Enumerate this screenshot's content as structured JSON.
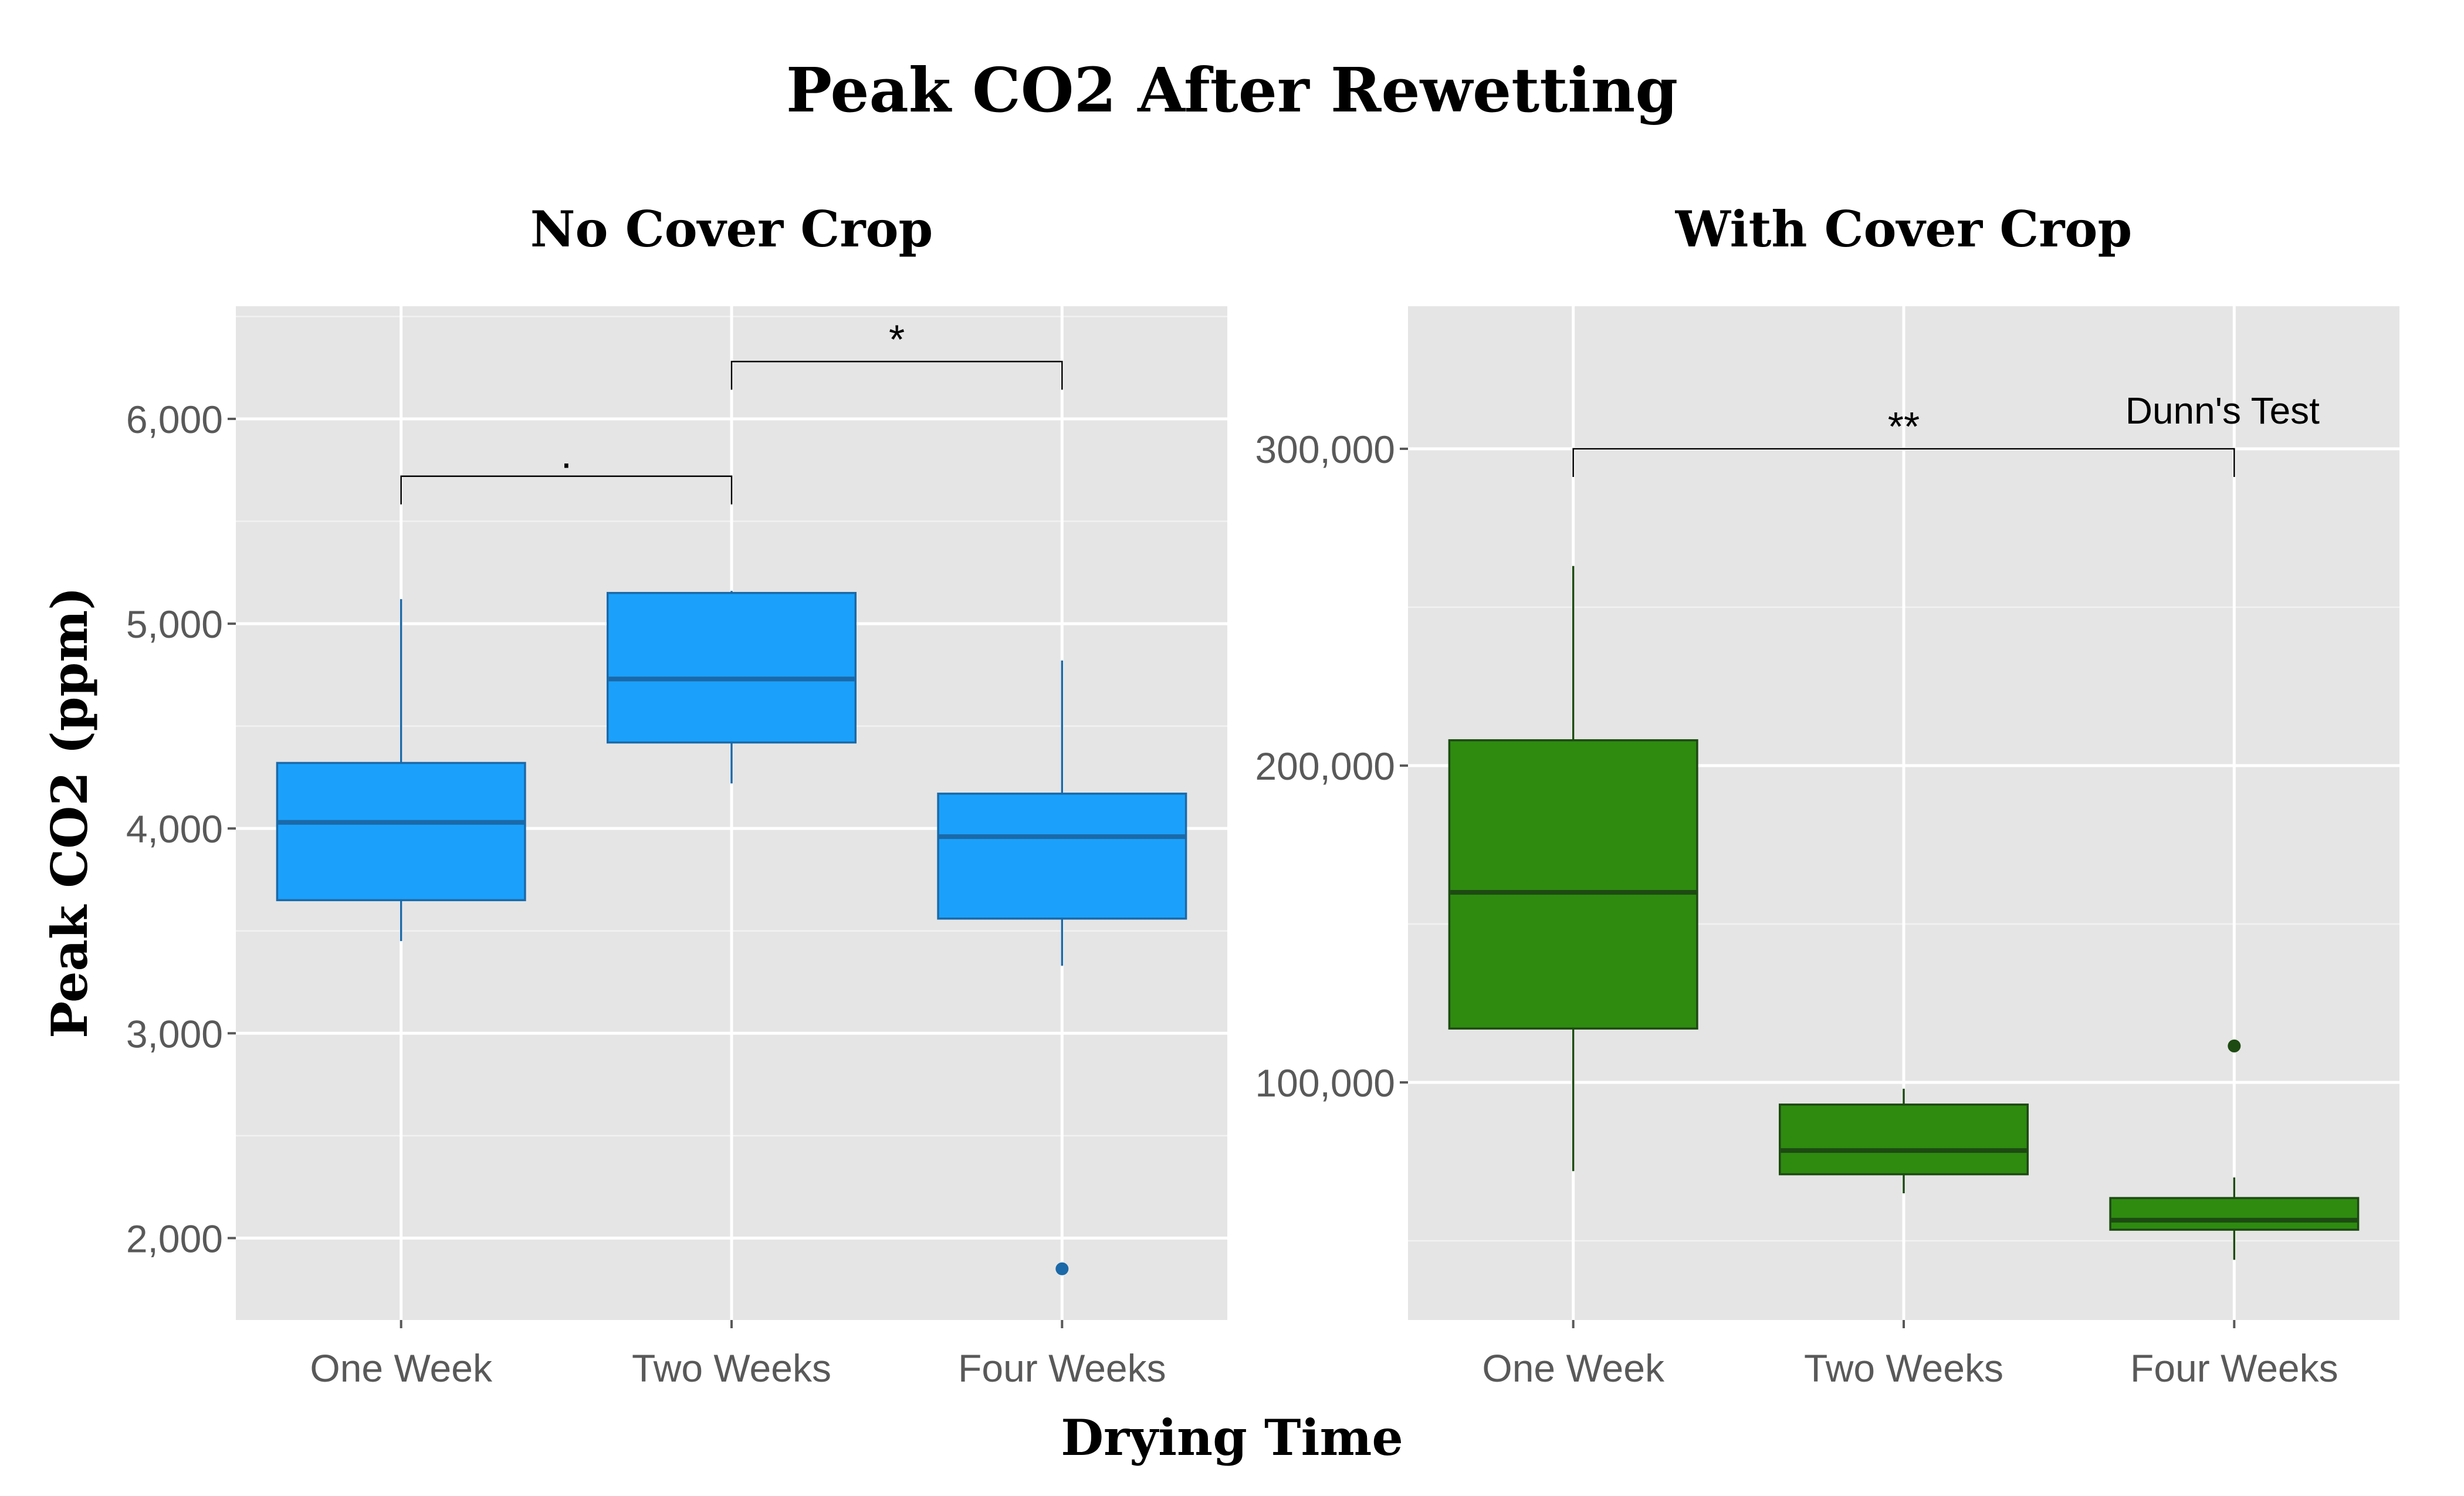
{
  "title": "Peak CO2 After Rewetting",
  "xlabel": "Drying Time",
  "ylabel": "Peak CO2 (ppm)",
  "chart_data": [
    {
      "type": "box",
      "title": "No Cover Crop",
      "color": "#1ba1fb",
      "stroke": "#1b69a8",
      "categories": [
        "One Week",
        "Two Weeks",
        "Four Weeks"
      ],
      "boxes": [
        {
          "min": 3450,
          "q1": 3650,
          "median": 4030,
          "q3": 4320,
          "max": 5120,
          "outliers": []
        },
        {
          "min": 4220,
          "q1": 4420,
          "median": 4730,
          "q3": 5150,
          "max": 5160,
          "outliers": []
        },
        {
          "min": 3330,
          "q1": 3560,
          "median": 3960,
          "q3": 4170,
          "max": 4820,
          "outliers": [
            1850
          ]
        }
      ],
      "ylim": [
        1600,
        6550
      ],
      "yticks": [
        2000,
        3000,
        4000,
        5000,
        6000
      ],
      "ytick_labels": [
        "2,000",
        "3,000",
        "4,000",
        "5,000",
        "6,000"
      ],
      "comparisons": [
        {
          "from": 0,
          "to": 1,
          "label": ".",
          "y": 5720
        },
        {
          "from": 1,
          "to": 2,
          "label": "*",
          "y": 6280
        }
      ],
      "annotation": ""
    },
    {
      "type": "box",
      "title": "With Cover Crop",
      "color": "#2e8b10",
      "stroke": "#1d4a12",
      "categories": [
        "One Week",
        "Two Weeks",
        "Four Weeks"
      ],
      "boxes": [
        {
          "min": 72000,
          "q1": 117000,
          "median": 160000,
          "q3": 208000,
          "max": 263000,
          "outliers": []
        },
        {
          "min": 65000,
          "q1": 71000,
          "median": 78500,
          "q3": 93000,
          "max": 98000,
          "outliers": []
        },
        {
          "min": 44000,
          "q1": 53500,
          "median": 56500,
          "q3": 63500,
          "max": 70000,
          "outliers": [
            111500
          ]
        }
      ],
      "ylim": [
        25000,
        345000
      ],
      "yticks": [
        100000,
        200000,
        300000
      ],
      "ytick_labels": [
        "100,000",
        "200,000",
        "300,000"
      ],
      "comparisons": [
        {
          "from": 0,
          "to": 2,
          "label": "**",
          "y": 300000
        }
      ],
      "annotation": "Dunn's Test"
    }
  ]
}
